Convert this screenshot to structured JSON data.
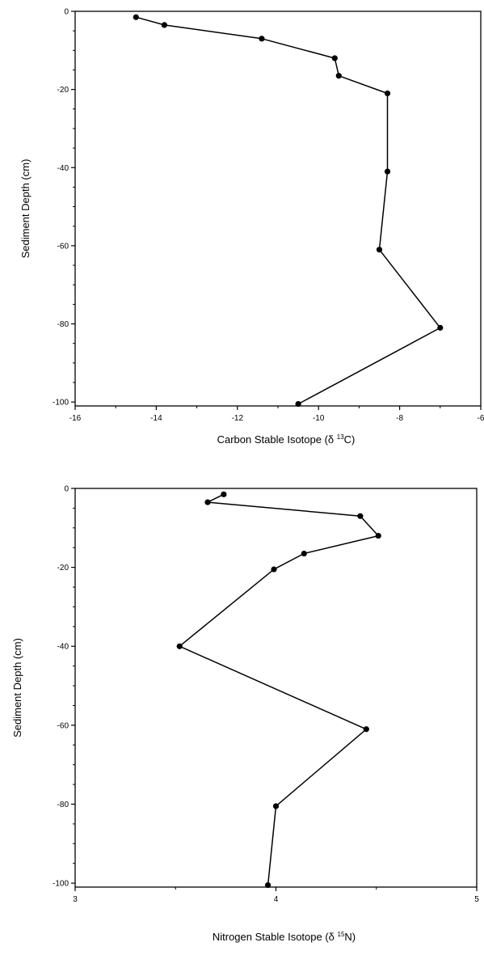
{
  "chart_data": [
    {
      "type": "line",
      "orientation": "depth-profile",
      "title": "",
      "xlabel_prefix": "Carbon Stable Isotope (δ ",
      "xlabel_sup": "13",
      "xlabel_suffix": "C)",
      "ylabel": "Sedimen‍t Depth (cm)",
      "xlim": [
        -16,
        -6
      ],
      "ylim": [
        -101,
        0
      ],
      "xticks": [
        -16,
        -14,
        -12,
        -10,
        -8,
        -6
      ],
      "yticks": [
        0,
        -20,
        -40,
        -60,
        -80,
        -100
      ],
      "xtick_labels": [
        "-16",
        "-14",
        "-12",
        "-10",
        "-8",
        "-6"
      ],
      "ytick_labels": [
        "0",
        "-20",
        "-40",
        "-60",
        "-80",
        "-100"
      ],
      "grid": false,
      "legend": "none",
      "series": [
        {
          "x": [
            -14.5,
            -13.8,
            -11.4,
            -9.6,
            -9.5,
            -8.3,
            -8.3,
            -8.5,
            -7.0,
            -10.5
          ],
          "y": [
            -1.5,
            -3.5,
            -7,
            -12,
            -16.5,
            -21,
            -41,
            -61,
            -81,
            -100.5
          ]
        }
      ]
    },
    {
      "type": "line",
      "orientation": "depth-profile",
      "title": "",
      "xlabel_prefix": "Nitrogen  Stable Isotope (δ ",
      "xlabel_sup": "15",
      "xlabel_suffix": "N)",
      "ylabel": "Sediment Depth (cm)",
      "xlim": [
        3,
        5
      ],
      "ylim": [
        -101,
        0
      ],
      "xticks": [
        3,
        4,
        5
      ],
      "yticks": [
        0,
        -20,
        -40,
        -60,
        -80,
        -100
      ],
      "xtick_labels": [
        "3",
        "4",
        "5"
      ],
      "ytick_labels": [
        "0",
        "-20",
        "-40",
        "-60",
        "-80",
        "-100"
      ],
      "grid": false,
      "legend": "none",
      "series": [
        {
          "x": [
            3.74,
            3.66,
            4.42,
            4.51,
            4.14,
            3.99,
            3.52,
            4.45,
            4.0,
            3.96
          ],
          "y": [
            -1.5,
            -3.5,
            -7,
            -12,
            -16.5,
            -20.5,
            -40,
            -61,
            -80.5,
            -100.5
          ]
        }
      ]
    }
  ]
}
